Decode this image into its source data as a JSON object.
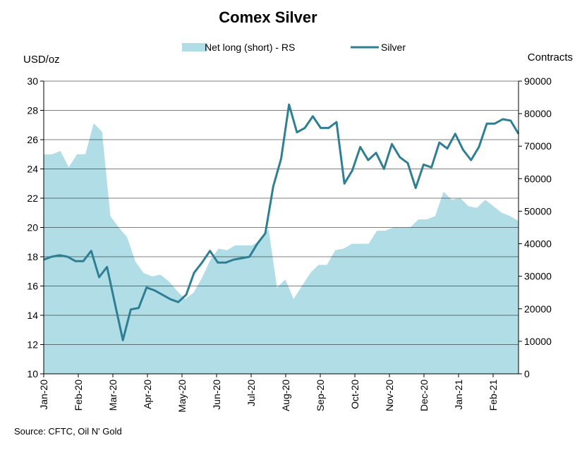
{
  "chart_data": {
    "type": "area+line",
    "title": "Comex Silver",
    "source": "Source: CFTC, Oil N' Gold",
    "left_axis": {
      "label": "USD/oz",
      "min": 10,
      "max": 30,
      "ticks": [
        10,
        12,
        14,
        16,
        18,
        20,
        22,
        24,
        26,
        28,
        30
      ]
    },
    "right_axis": {
      "label": "Contracts",
      "min": 0,
      "max": 90000,
      "ticks": [
        0,
        10000,
        20000,
        30000,
        40000,
        50000,
        60000,
        70000,
        80000,
        90000
      ]
    },
    "x_labels": [
      "Jan-20",
      "Feb-20",
      "Mar-20",
      "Apr-20",
      "May-20",
      "Jun-20",
      "Jul-20",
      "Aug-20",
      "Sep-20",
      "Oct-20",
      "Nov-20",
      "Dec-20",
      "Jan-21",
      "Feb-21"
    ],
    "grid": "horizontal",
    "legend_position": "top",
    "colors": {
      "net_long": "#b0dde6",
      "silver": "#2e7f94",
      "grid": "#000000"
    },
    "series": [
      {
        "name": "Net long (short) - RS",
        "axis": "right",
        "type": "area",
        "values": [
          67500,
          67500,
          68500,
          63500,
          67500,
          67500,
          77000,
          74500,
          48500,
          45000,
          42000,
          34500,
          31000,
          30000,
          30500,
          28500,
          25500,
          23000,
          25000,
          29500,
          35000,
          38500,
          38000,
          39500,
          39500,
          39500,
          41000,
          44500,
          26500,
          29000,
          23000,
          27000,
          31000,
          33500,
          33500,
          38000,
          38500,
          40000,
          40000,
          40000,
          44000,
          44000,
          45000,
          45000,
          45000,
          47500,
          47500,
          48500,
          56000,
          53500,
          54000,
          51500,
          51000,
          53500,
          51500,
          49500,
          48500,
          47000
        ]
      },
      {
        "name": "Silver",
        "axis": "left",
        "type": "line",
        "values": [
          17.8,
          18.0,
          18.1,
          18.0,
          17.7,
          17.7,
          18.4,
          16.6,
          17.3,
          14.8,
          12.3,
          14.4,
          14.5,
          15.9,
          15.7,
          15.4,
          15.1,
          14.9,
          15.4,
          16.9,
          17.6,
          18.4,
          17.6,
          17.6,
          17.8,
          17.9,
          18.0,
          18.9,
          19.6,
          22.8,
          24.7,
          28.4,
          26.5,
          26.8,
          27.6,
          26.8,
          26.8,
          27.2,
          23.0,
          23.9,
          25.5,
          24.6,
          25.1,
          24.0,
          25.7,
          24.8,
          24.4,
          22.7,
          24.3,
          24.1,
          25.8,
          25.4,
          26.4,
          25.3,
          24.6,
          25.5,
          27.1,
          27.1,
          27.4,
          27.3,
          26.4
        ]
      }
    ]
  }
}
